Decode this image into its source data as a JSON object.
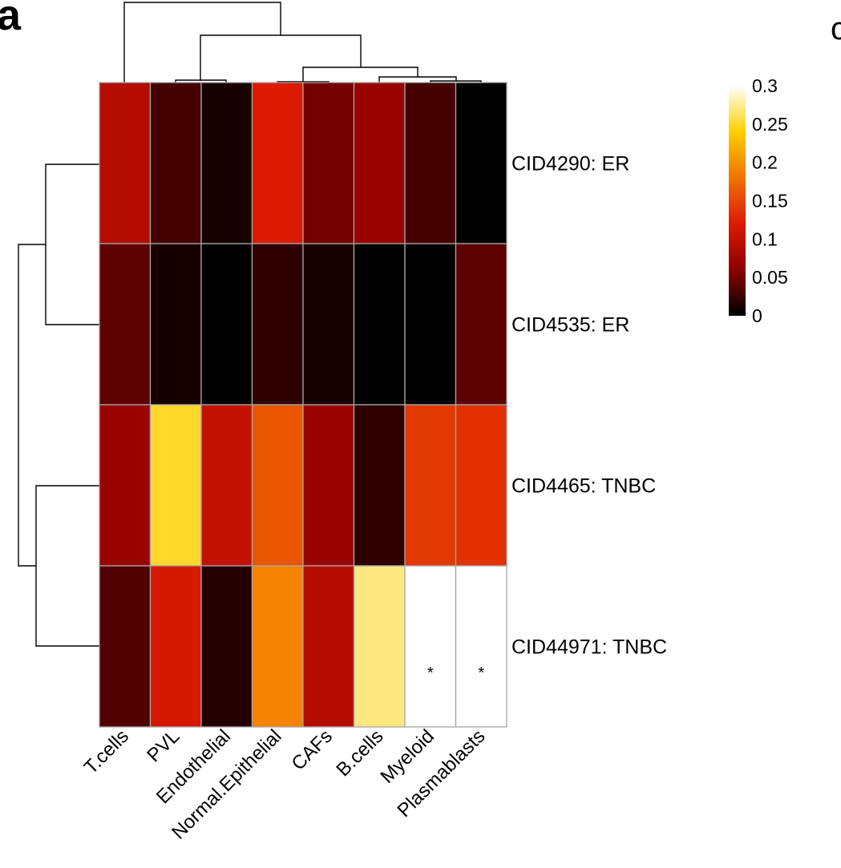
{
  "panel_label": "a",
  "next_panel_label": "c",
  "chart_data": {
    "type": "heatmap",
    "columns": [
      "T.cells",
      "PVL",
      "Endothelial",
      "Normal.Epithelial",
      "CAFs",
      "B.cells",
      "Myeloid",
      "Plasmablasts"
    ],
    "rows": [
      "CID4290: ER",
      "CID4535: ER",
      "CID4465: TNBC",
      "CID44971: TNBC"
    ],
    "values": [
      [
        0.09,
        0.03,
        0.01,
        0.12,
        0.05,
        0.07,
        0.03,
        0.0
      ],
      [
        0.04,
        0.01,
        0.0,
        0.02,
        0.01,
        0.0,
        0.0,
        0.04
      ],
      [
        0.07,
        0.25,
        0.1,
        0.16,
        0.07,
        0.02,
        0.14,
        0.135
      ],
      [
        0.035,
        0.115,
        0.015,
        0.19,
        0.09,
        0.27,
        0.3,
        0.3
      ]
    ],
    "annotations": [
      {
        "row": 3,
        "col": 6,
        "text": "*"
      },
      {
        "row": 3,
        "col": 7,
        "text": "*"
      }
    ],
    "colorbar": {
      "min": 0,
      "max": 0.3,
      "ticks": [
        "0.3",
        "0.25",
        "0.2",
        "0.15",
        "0.1",
        "0.05",
        "0"
      ],
      "tick_values": [
        0.3,
        0.25,
        0.2,
        0.15,
        0.1,
        0.05,
        0
      ],
      "colors": [
        "#000000",
        "#8b0000",
        "#dd1a00",
        "#f07300",
        "#ffd000",
        "#ffffff"
      ]
    },
    "column_dendrogram": "((T.cells,((PVL,Endothelial),((Normal.Epithelial,CAFs),(B.cells,(Myeloid,Plasmablasts))))))",
    "row_dendrogram": "((CID4290: ER,CID4535: ER),(CID4465: TNBC,CID44971: TNBC))"
  }
}
